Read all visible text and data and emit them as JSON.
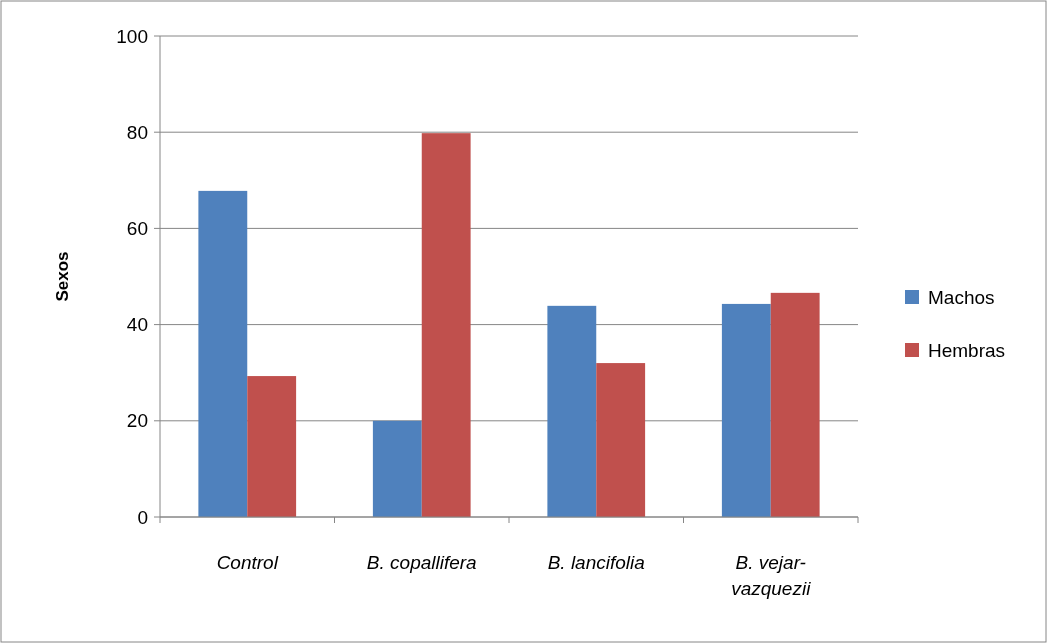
{
  "chart_data": {
    "type": "bar",
    "ylabel": "Sexos",
    "categories": [
      "Control",
      "B. copallifera",
      "B. lancifolia",
      "B. vejar-vazquezii"
    ],
    "series": [
      {
        "name": "Machos",
        "color": "#4f81bd",
        "values": [
          67.8,
          20,
          43.9,
          44.3
        ]
      },
      {
        "name": "Hembras",
        "color": "#c0504d",
        "values": [
          29.3,
          79.8,
          32,
          46.6
        ]
      }
    ],
    "ylim": [
      0,
      100
    ],
    "yticks": [
      0,
      20,
      40,
      60,
      80,
      100
    ],
    "grid": "y",
    "legend": "right"
  }
}
